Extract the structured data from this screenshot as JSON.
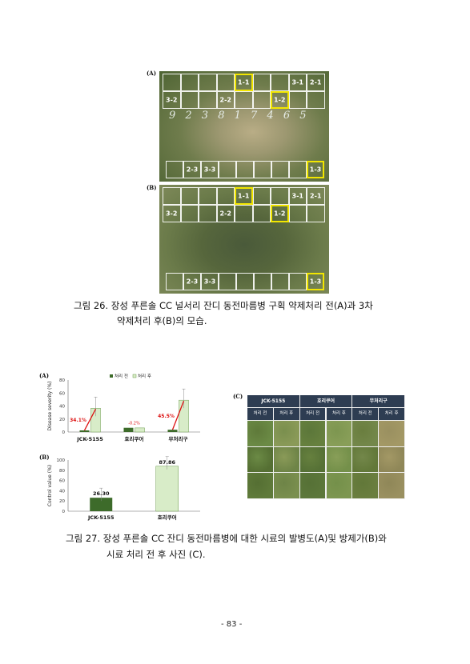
{
  "fig26": {
    "label_a": "(A)",
    "label_b": "(B)",
    "plots_a": [
      {
        "text": "1-1",
        "highlight": true,
        "col": 4,
        "row": 0
      },
      {
        "text": "3-1",
        "highlight": false,
        "col": 7,
        "row": 0
      },
      {
        "text": "2-1",
        "highlight": false,
        "col": 8,
        "row": 0
      },
      {
        "text": "3-2",
        "highlight": false,
        "col": 0,
        "row": 1
      },
      {
        "text": "2-2",
        "highlight": false,
        "col": 3,
        "row": 1
      },
      {
        "text": "1-2",
        "highlight": true,
        "col": 6,
        "row": 1
      },
      {
        "text": "2-3",
        "highlight": false,
        "col": 1,
        "row": 2
      },
      {
        "text": "3-3",
        "highlight": false,
        "col": 2,
        "row": 2
      },
      {
        "text": "1-3",
        "highlight": true,
        "col": 8,
        "row": 2
      }
    ],
    "chalk_numbers": "9 2 3 8 1 7 4 6 5",
    "caption_line1": "그림 26. 장성 푸른솔 CC 널서리 잔디 동전마름병 구획 약제처리 전(A)과 3차",
    "caption_line2": "약제처리 후(B)의 모습."
  },
  "fig27": {
    "label_a": "(A)",
    "label_b": "(B)",
    "label_c": "(C)",
    "legend_before": "처리 전",
    "legend_after": "처리 후",
    "chart_a": {
      "ylabel": "Disease severity (%)",
      "yticks": [
        "80",
        "60",
        "40",
        "20",
        "0"
      ],
      "categories": [
        "JCK-5155",
        "호리쿠어",
        "무처리구"
      ],
      "change_labels": [
        "34.1%",
        "-0.2%",
        "45.5%"
      ]
    },
    "chart_b": {
      "ylabel": "Control value (%)",
      "yticks": [
        "100",
        "80",
        "60",
        "40",
        "20",
        "0"
      ],
      "categories": [
        "JCK-5155",
        "호리쿠어"
      ],
      "value_labels": [
        "26.30",
        "87.86"
      ]
    },
    "table_c": {
      "groups": [
        "JCK-5155",
        "호리쿠어",
        "무처리구"
      ],
      "subheaders": [
        "처리 전",
        "처리 후",
        "처리 전",
        "처리 후",
        "처리 전",
        "처리 후"
      ]
    },
    "caption_line1": "그림 27. 장성 푸른솔 CC 잔디 동전마름병에 대한 시료의 발병도(A)및 방제가(B)와",
    "caption_line2": "시료 처리 전 후 사진 (C)."
  },
  "chart_data": [
    {
      "type": "bar",
      "title": "",
      "ylabel": "Disease severity (%)",
      "ylim": [
        0,
        80
      ],
      "categories": [
        "JCK-5155",
        "호리쿠어",
        "무처리구"
      ],
      "series": [
        {
          "name": "처리 전",
          "values": [
            2.5,
            6.5,
            3.5
          ]
        },
        {
          "name": "처리 후",
          "values": [
            36.6,
            6.3,
            49.0
          ]
        }
      ],
      "annotations": [
        "34.1%",
        "-0.2%",
        "45.5%"
      ],
      "colors": {
        "before": "#3d6b2a",
        "after": "#d8ecc8"
      }
    },
    {
      "type": "bar",
      "title": "",
      "ylabel": "Control value (%)",
      "ylim": [
        0,
        100
      ],
      "categories": [
        "JCK-5155",
        "호리쿠어"
      ],
      "values": [
        26.3,
        87.86
      ],
      "colors": {
        "JCK-5155": "#3d6b2a",
        "호리쿠어": "#d8ecc8"
      }
    }
  ],
  "footer": {
    "page": "- 83 -"
  }
}
